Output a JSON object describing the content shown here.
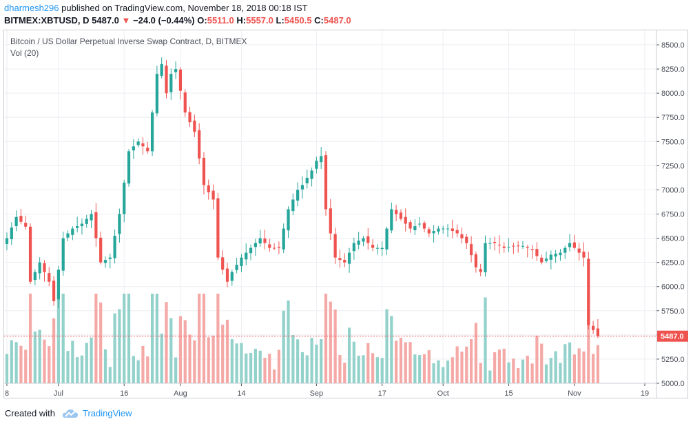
{
  "header": {
    "user": "dharmesh296",
    "published": "published on TradingView.com, November 18, 2018 00:18 IST",
    "symbol": "BITMEX:XBTUSD, D",
    "price": "5487.0",
    "change": "−24.0 (−0.44%)",
    "o_label": "O:",
    "o": "5511.0",
    "h_label": "H:",
    "h": "5557.0",
    "l_label": "L:",
    "l": "5450.5",
    "c_label": "C:",
    "c": "5487.0"
  },
  "legend": {
    "title": "Bitcoin / US Dollar Perpetual Inverse Swap Contract, D, BITMEX",
    "volume": "Vol (20)"
  },
  "footer": {
    "created": "Created with",
    "brand": "TradingView"
  },
  "colors": {
    "up": "#26a69a",
    "down": "#ef5350",
    "vol_up": "#93d1cb",
    "vol_down": "#f4a9a7",
    "grid": "#eceef2",
    "axis": "#4a4e58"
  },
  "chart_data": {
    "type": "candlestick",
    "title": "Bitcoin / US Dollar Perpetual Inverse Swap Contract, D, BITMEX",
    "ylim": [
      5000,
      8650
    ],
    "y_ticks": [
      5000,
      5250,
      5500,
      5750,
      6000,
      6250,
      6500,
      6750,
      7000,
      7250,
      7500,
      7750,
      8000,
      8250,
      8500
    ],
    "y_tick_labels": [
      "5000.0",
      "5250.0",
      "5500.0",
      "5750.0",
      "6000.0",
      "6250.0",
      "6500.0",
      "6750.0",
      "7000.0",
      "7250.0",
      "7500.0",
      "7750.0",
      "8000.0",
      "8250.0",
      "8500.0"
    ],
    "x_ticks": [
      {
        "label": "8",
        "day": 0
      },
      {
        "label": "Jul",
        "day": 11
      },
      {
        "label": "16",
        "day": 25
      },
      {
        "label": "Aug",
        "day": 37
      },
      {
        "label": "14",
        "day": 50
      },
      {
        "label": "Sep",
        "day": 66
      },
      {
        "label": "17",
        "day": 80
      },
      {
        "label": "Oct",
        "day": 93
      },
      {
        "label": "15",
        "day": 107
      },
      {
        "label": "Nov",
        "day": 121
      },
      {
        "label": "19",
        "day": 136
      }
    ],
    "last_price": 5487.0,
    "last_price_label": "5487.0",
    "keypoints": [
      [
        0,
        6500
      ],
      [
        2,
        6720
      ],
      [
        4,
        6620
      ],
      [
        5,
        6050
      ],
      [
        7,
        6250
      ],
      [
        9,
        6050
      ],
      [
        10,
        5850
      ],
      [
        12,
        6500
      ],
      [
        14,
        6600
      ],
      [
        16,
        6650
      ],
      [
        18,
        6750
      ],
      [
        20,
        6250
      ],
      [
        22,
        6300
      ],
      [
        24,
        6750
      ],
      [
        26,
        7400
      ],
      [
        28,
        7500
      ],
      [
        30,
        7400
      ],
      [
        32,
        8200
      ],
      [
        33,
        8300
      ],
      [
        34,
        8000
      ],
      [
        35,
        8200
      ],
      [
        36,
        8250
      ],
      [
        38,
        7800
      ],
      [
        40,
        7600
      ],
      [
        42,
        7050
      ],
      [
        44,
        6900
      ],
      [
        45,
        6300
      ],
      [
        47,
        6050
      ],
      [
        48,
        6150
      ],
      [
        50,
        6300
      ],
      [
        52,
        6400
      ],
      [
        54,
        6500
      ],
      [
        56,
        6400
      ],
      [
        58,
        6400
      ],
      [
        60,
        6800
      ],
      [
        62,
        7000
      ],
      [
        63,
        7050
      ],
      [
        65,
        7200
      ],
      [
        66,
        7300
      ],
      [
        67,
        7350
      ],
      [
        68,
        6800
      ],
      [
        70,
        6300
      ],
      [
        72,
        6250
      ],
      [
        74,
        6450
      ],
      [
        76,
        6500
      ],
      [
        78,
        6400
      ],
      [
        80,
        6400
      ],
      [
        82,
        6800
      ],
      [
        84,
        6700
      ],
      [
        86,
        6600
      ],
      [
        88,
        6650
      ],
      [
        90,
        6550
      ],
      [
        92,
        6600
      ],
      [
        94,
        6600
      ],
      [
        96,
        6550
      ],
      [
        98,
        6450
      ],
      [
        100,
        6200
      ],
      [
        101,
        6150
      ],
      [
        102,
        6450
      ],
      [
        104,
        6450
      ],
      [
        106,
        6400
      ],
      [
        108,
        6420
      ],
      [
        110,
        6420
      ],
      [
        112,
        6380
      ],
      [
        114,
        6250
      ],
      [
        116,
        6330
      ],
      [
        118,
        6350
      ],
      [
        120,
        6450
      ],
      [
        121,
        6400
      ],
      [
        122,
        6350
      ],
      [
        123,
        6300
      ],
      [
        124,
        5600
      ],
      [
        125,
        5550
      ],
      [
        126,
        5487
      ]
    ]
  }
}
